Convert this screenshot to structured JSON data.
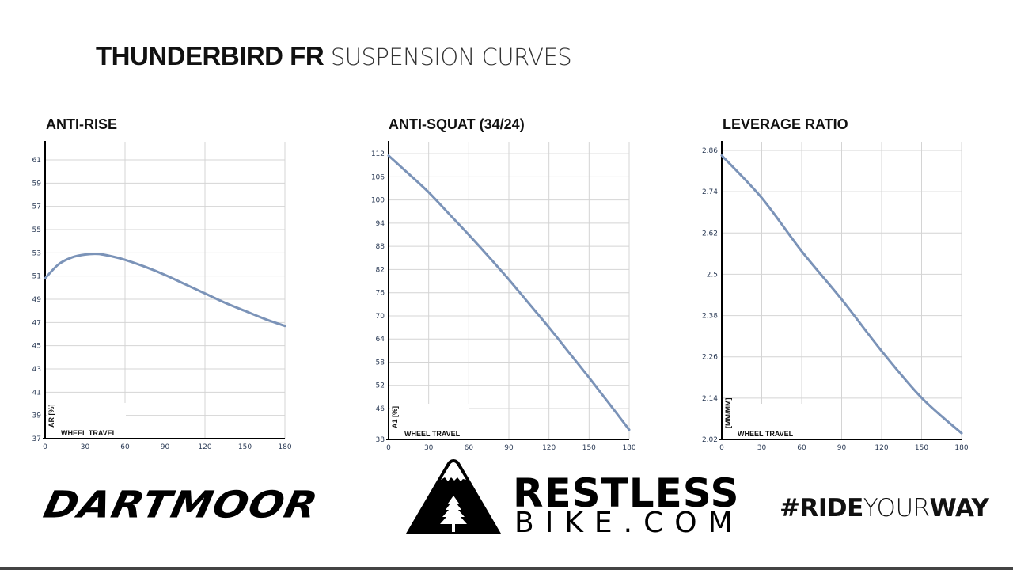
{
  "header": {
    "title_bold": "THUNDERBIRD FR",
    "title_light": "SUSPENSION CURVES"
  },
  "line_color": "#7b93b8",
  "chart_data": [
    {
      "type": "line",
      "title": "ANTI-RISE",
      "xlabel": "WHEEL TRAVEL",
      "ylabel": "AR [%]",
      "xlim": [
        0,
        180
      ],
      "ylim": [
        37,
        62.5
      ],
      "xticks": [
        0,
        30,
        60,
        90,
        120,
        150,
        180
      ],
      "yticks": [
        37,
        39,
        41,
        43,
        45,
        47,
        49,
        51,
        53,
        55,
        57,
        59,
        61
      ],
      "grid": true,
      "x": [
        0,
        10,
        20,
        30,
        40,
        50,
        60,
        75,
        90,
        105,
        120,
        135,
        150,
        165,
        180
      ],
      "y": [
        50.8,
        52.0,
        52.6,
        52.85,
        52.9,
        52.7,
        52.4,
        51.8,
        51.1,
        50.3,
        49.5,
        48.7,
        48.0,
        47.3,
        46.7
      ]
    },
    {
      "type": "line",
      "title": "ANTI-SQUAT (34/24)",
      "xlabel": "WHEEL TRAVEL",
      "ylabel": "A1 [%]",
      "xlim": [
        0,
        180
      ],
      "ylim": [
        38,
        114.9
      ],
      "xticks": [
        0,
        30,
        60,
        90,
        120,
        150,
        180
      ],
      "yticks": [
        38,
        46,
        52,
        58,
        64,
        70,
        76,
        82,
        88,
        94,
        100,
        106,
        112
      ],
      "grid": true,
      "x": [
        0,
        15,
        30,
        45,
        60,
        75,
        90,
        105,
        120,
        135,
        150,
        165,
        180
      ],
      "y": [
        111.5,
        106.8,
        102,
        96.5,
        91,
        85.3,
        79.4,
        73.2,
        67,
        60.5,
        54,
        47.3,
        40.5
      ]
    },
    {
      "type": "line",
      "title": "LEVERAGE RATIO",
      "xlabel": "WHEEL TRAVEL",
      "ylabel": "[MM/MM]",
      "xlim": [
        0,
        180
      ],
      "ylim": [
        2.02,
        2.883
      ],
      "xticks": [
        0,
        30,
        60,
        90,
        120,
        150,
        180
      ],
      "yticks": [
        2.02,
        2.14,
        2.26,
        2.38,
        2.5,
        2.62,
        2.74,
        2.86
      ],
      "grid": true,
      "x": [
        0,
        30,
        60,
        90,
        120,
        150,
        180
      ],
      "y": [
        2.845,
        2.722,
        2.567,
        2.427,
        2.277,
        2.141,
        2.038
      ]
    }
  ],
  "footer": {
    "brand_left": "DARTMOOR",
    "brand_mid_line1": "RESTLESS",
    "brand_mid_line2": "BIKE.COM",
    "hashtag_bold1": "#RIDE",
    "hashtag_light": "YOUR",
    "hashtag_bold2": "WAY"
  }
}
